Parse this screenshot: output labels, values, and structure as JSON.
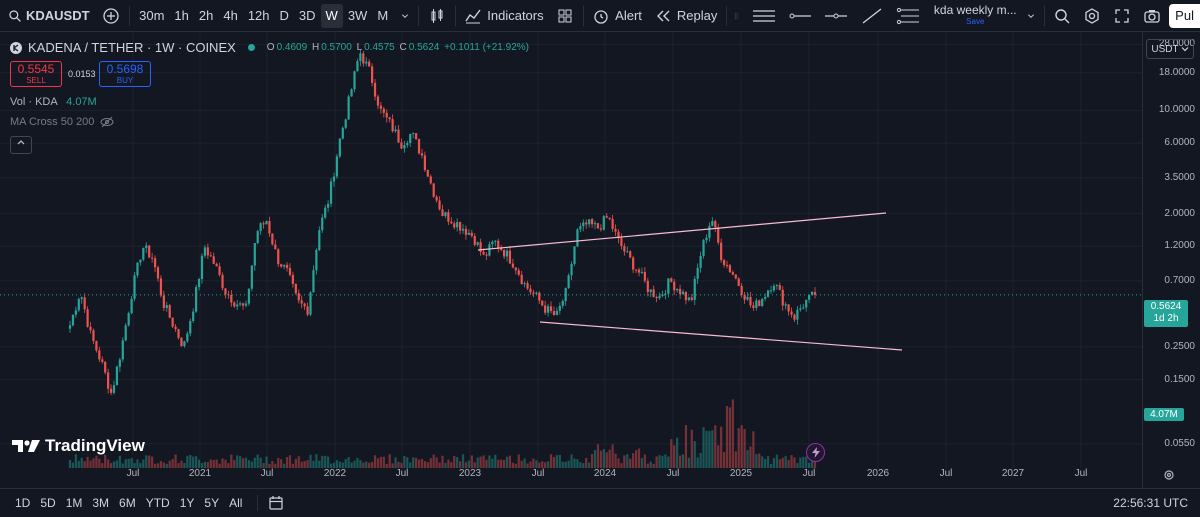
{
  "toolbar": {
    "symbol": "KDAUSDT",
    "timeframes": [
      "30m",
      "1h",
      "2h",
      "4h",
      "12h",
      "D",
      "3D",
      "W",
      "3W",
      "M"
    ],
    "active_timeframe": "W",
    "indicators_label": "Indicators",
    "alert_label": "Alert",
    "replay_label": "Replay",
    "layout_name": "kda weekly m...",
    "layout_status": "Save",
    "publish_label": "Pul"
  },
  "legend": {
    "title": "KADENA / TETHER · 1W · COINEX",
    "o_label": "O",
    "o_value": "0.4609",
    "h_label": "H",
    "h_value": "0.5700",
    "l_label": "L",
    "l_value": "0.4575",
    "c_label": "C",
    "c_value": "0.5624",
    "change": "+0.1011 (+21.92%)"
  },
  "trade": {
    "sell_price": "0.5545",
    "sell_label": "SELL",
    "spread": "0.0153",
    "buy_price": "0.5698",
    "buy_label": "BUY"
  },
  "indicators": {
    "vol_label": "Vol · KDA",
    "vol_value": "4.07M",
    "ma_label": "MA Cross 50 200"
  },
  "price_axis": {
    "currency": "USDT",
    "labels": [
      "28.0000",
      "18.0000",
      "10.0000",
      "6.0000",
      "3.5000",
      "2.0000",
      "1.2000",
      "0.7000",
      "0.2500",
      "0.1500",
      "0.0550"
    ],
    "current_price": "0.5624",
    "countdown": "1d 2h",
    "volume_badge": "4.07M"
  },
  "time_axis": {
    "labels": [
      "Jul",
      "2021",
      "Jul",
      "2022",
      "Jul",
      "2023",
      "Jul",
      "2024",
      "Jul",
      "2025",
      "Jul",
      "2026",
      "Jul",
      "2027",
      "Jul"
    ]
  },
  "bottom": {
    "ranges": [
      "1D",
      "5D",
      "1M",
      "3M",
      "6M",
      "YTD",
      "1Y",
      "5Y",
      "All"
    ],
    "clock": "22:56:31 UTC"
  },
  "watermark": "TradingView",
  "colors": {
    "up": "#26a69a",
    "down": "#ef5350",
    "trendline": "#f8bbd0",
    "bg": "#131722"
  },
  "chart_data": {
    "type": "candlestick",
    "scale": "log",
    "ylim": [
      0.05,
      30
    ],
    "series_anchor_closes": [
      0.35,
      0.6,
      0.3,
      0.2,
      0.12,
      0.25,
      0.6,
      1.2,
      1.0,
      0.5,
      0.35,
      0.25,
      0.5,
      1.2,
      0.9,
      0.6,
      0.5,
      0.45,
      1.5,
      1.8,
      1.0,
      0.8,
      0.5,
      0.45,
      1.5,
      2.5,
      6,
      12,
      25,
      18,
      10,
      8,
      6,
      7,
      5,
      3,
      2,
      1.8,
      1.6,
      1.4,
      1.0,
      1.3,
      1.1,
      0.9,
      0.65,
      0.55,
      0.45,
      0.4,
      0.6,
      1.5,
      1.7,
      1.6,
      1.9,
      1.3,
      1.0,
      0.8,
      0.6,
      0.55,
      0.7,
      0.6,
      0.5,
      1.1,
      1.9,
      1.0,
      0.8,
      0.6,
      0.45,
      0.55,
      0.7,
      0.5,
      0.4,
      0.5,
      0.5624
    ],
    "trendlines": [
      {
        "from": [
          "2023-01",
          "1.4"
        ],
        "to": [
          "2026-02",
          "2.6"
        ]
      },
      {
        "from": [
          "2023-06",
          "0.45"
        ],
        "to": [
          "2026-03",
          "0.3"
        ]
      }
    ]
  }
}
